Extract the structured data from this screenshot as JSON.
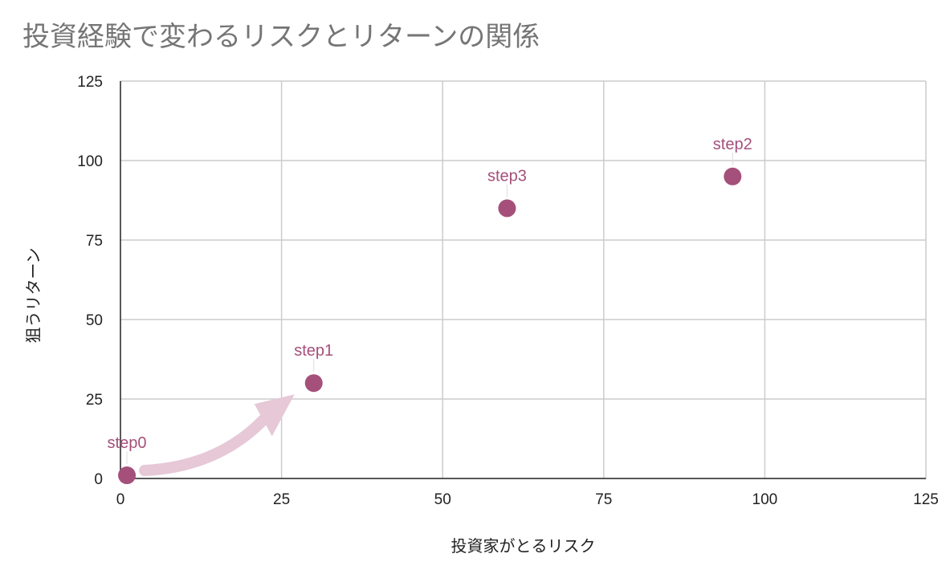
{
  "chart_data": {
    "type": "scatter",
    "title": "投資経験で変わるリスクとリターンの関係",
    "xlabel": "投資家がとるリスク",
    "ylabel": "狙うリターン",
    "xlim": [
      0,
      125
    ],
    "ylim": [
      0,
      125
    ],
    "xticks": [
      "0",
      "25",
      "50",
      "75",
      "100",
      "125"
    ],
    "yticks": [
      "0",
      "25",
      "50",
      "75",
      "100",
      "125"
    ],
    "grid": true,
    "points": [
      {
        "label": "step0",
        "x": 1,
        "y": 1
      },
      {
        "label": "step1",
        "x": 30,
        "y": 30
      },
      {
        "label": "step3",
        "x": 60,
        "y": 85
      },
      {
        "label": "step2",
        "x": 95,
        "y": 95
      }
    ],
    "annotation": {
      "type": "arrow",
      "from": "step0",
      "to": "step1"
    },
    "colors": {
      "point": "#a4507b",
      "label": "#a4507b",
      "arrow": "#e6c8d6",
      "grid": "#cccccc",
      "title": "#757575"
    }
  }
}
